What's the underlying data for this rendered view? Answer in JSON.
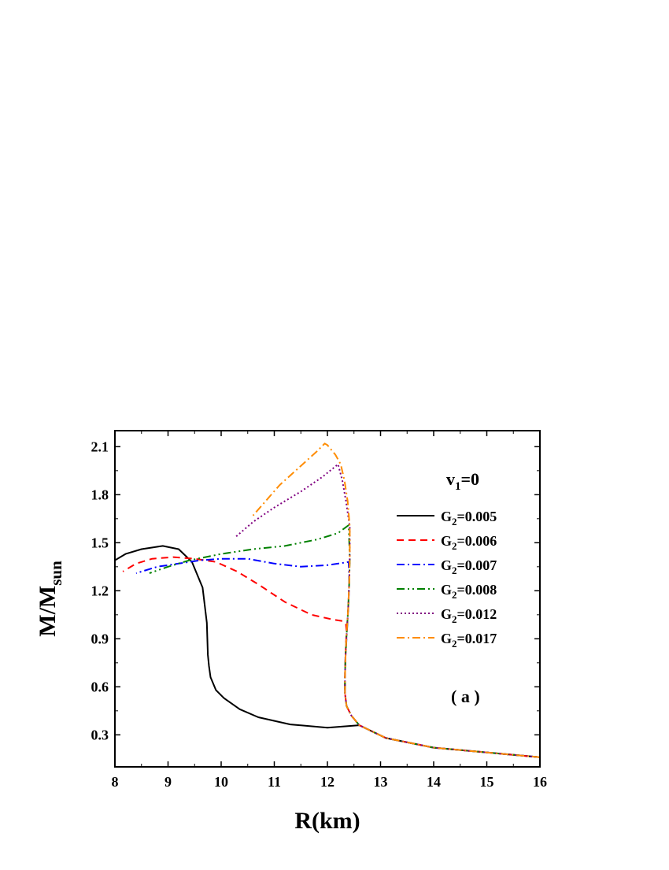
{
  "chart_data": {
    "type": "line",
    "xlabel": "R(km)",
    "ylabel": {
      "main": "M/M",
      "sub": "sun"
    },
    "xlim": [
      8,
      16
    ],
    "ylim": [
      0.1,
      2.2
    ],
    "xticks": [
      8,
      9,
      10,
      11,
      12,
      13,
      14,
      15,
      16
    ],
    "yticks": [
      0.3,
      0.6,
      0.9,
      1.2,
      1.5,
      1.8,
      2.1
    ],
    "ytick_labels": [
      "0.3",
      "0.6",
      "0.9",
      "1.2",
      "1.5",
      "1.8",
      "2.1"
    ],
    "legend": {
      "title": {
        "main": "v",
        "sub": "1",
        "rest": "=0"
      },
      "placement": "right"
    },
    "annotation": "( a )",
    "grid": false,
    "series": [
      {
        "label_main": "G",
        "label_sub": "2",
        "label_rest": "=0.005",
        "color": "#000000",
        "dash": "",
        "x": [
          16.0,
          14.0,
          13.1,
          12.6,
          12.0,
          11.3,
          10.7,
          10.35,
          10.05,
          9.9,
          9.8,
          9.77,
          9.75,
          9.73,
          9.65,
          9.45,
          9.2,
          8.9,
          8.5,
          8.2,
          8.0
        ],
        "y": [
          0.16,
          0.22,
          0.28,
          0.36,
          0.345,
          0.365,
          0.41,
          0.46,
          0.53,
          0.58,
          0.66,
          0.73,
          0.8,
          1.0,
          1.22,
          1.38,
          1.46,
          1.48,
          1.46,
          1.43,
          1.39
        ]
      },
      {
        "label_main": "G",
        "label_sub": "2",
        "label_rest": "=0.006",
        "color": "#ff0000",
        "dash": "9,6",
        "x": [
          16.0,
          14.0,
          13.1,
          12.6,
          12.45,
          12.36,
          12.33,
          12.33,
          12.34,
          12.35,
          12.36,
          12.35,
          12.3,
          12.1,
          11.7,
          11.2,
          10.7,
          10.3,
          9.9,
          9.5,
          9.1,
          8.7,
          8.4,
          8.15
        ],
        "y": [
          0.16,
          0.22,
          0.28,
          0.36,
          0.42,
          0.48,
          0.56,
          0.66,
          0.78,
          0.88,
          0.95,
          0.99,
          1.01,
          1.02,
          1.05,
          1.13,
          1.24,
          1.32,
          1.38,
          1.4,
          1.41,
          1.4,
          1.37,
          1.32
        ]
      },
      {
        "label_main": "G",
        "label_sub": "2",
        "label_rest": "=0.007",
        "color": "#0000ff",
        "dash": "10,4,2,4",
        "x": [
          16.0,
          14.0,
          13.1,
          12.6,
          12.45,
          12.36,
          12.33,
          12.33,
          12.34,
          12.36,
          12.38,
          12.4,
          12.41,
          12.4,
          12.3,
          12.0,
          11.5,
          11.0,
          10.5,
          10.0,
          9.6,
          9.2,
          8.8,
          8.4
        ],
        "y": [
          0.16,
          0.22,
          0.28,
          0.36,
          0.42,
          0.48,
          0.56,
          0.66,
          0.78,
          0.9,
          1.02,
          1.15,
          1.25,
          1.38,
          1.375,
          1.36,
          1.35,
          1.37,
          1.4,
          1.4,
          1.39,
          1.37,
          1.35,
          1.31
        ]
      },
      {
        "label_main": "G",
        "label_sub": "2",
        "label_rest": "=0.008",
        "color": "#008000",
        "dash": "10,4,2,4,2,4",
        "x": [
          16.0,
          14.0,
          13.1,
          12.6,
          12.45,
          12.36,
          12.33,
          12.33,
          12.34,
          12.36,
          12.39,
          12.41,
          12.42,
          12.4,
          12.2,
          11.8,
          11.2,
          10.6,
          10.0,
          9.4,
          9.0,
          8.65
        ],
        "y": [
          0.16,
          0.22,
          0.28,
          0.36,
          0.42,
          0.48,
          0.56,
          0.66,
          0.78,
          0.92,
          1.08,
          1.25,
          1.4,
          1.61,
          1.56,
          1.52,
          1.48,
          1.46,
          1.43,
          1.39,
          1.35,
          1.31
        ]
      },
      {
        "label_main": "G",
        "label_sub": "2",
        "label_rest": "=0.012",
        "color": "#800080",
        "dash": "2,3",
        "x": [
          16.0,
          14.0,
          13.1,
          12.6,
          12.45,
          12.36,
          12.33,
          12.33,
          12.34,
          12.36,
          12.39,
          12.41,
          12.42,
          12.42,
          12.35,
          12.28,
          12.2,
          11.9,
          11.5,
          11.0,
          10.6,
          10.25
        ],
        "y": [
          0.16,
          0.22,
          0.28,
          0.36,
          0.42,
          0.48,
          0.56,
          0.66,
          0.78,
          0.92,
          1.08,
          1.25,
          1.42,
          1.6,
          1.76,
          1.89,
          1.99,
          1.91,
          1.82,
          1.72,
          1.63,
          1.53
        ]
      },
      {
        "label_main": "G",
        "label_sub": "2",
        "label_rest": "=0.017",
        "color": "#ff8c00",
        "dash": "10,4,2,4",
        "x": [
          16.0,
          14.0,
          13.1,
          12.6,
          12.45,
          12.36,
          12.33,
          12.33,
          12.34,
          12.36,
          12.39,
          12.41,
          12.42,
          12.42,
          12.38,
          12.32,
          12.25,
          12.15,
          12.0,
          11.95,
          11.8,
          11.5,
          11.1,
          10.6
        ],
        "y": [
          0.16,
          0.22,
          0.28,
          0.36,
          0.42,
          0.48,
          0.56,
          0.66,
          0.78,
          0.92,
          1.08,
          1.25,
          1.42,
          1.6,
          1.76,
          1.89,
          1.99,
          2.05,
          2.11,
          2.12,
          2.07,
          1.98,
          1.86,
          1.67
        ]
      }
    ]
  }
}
